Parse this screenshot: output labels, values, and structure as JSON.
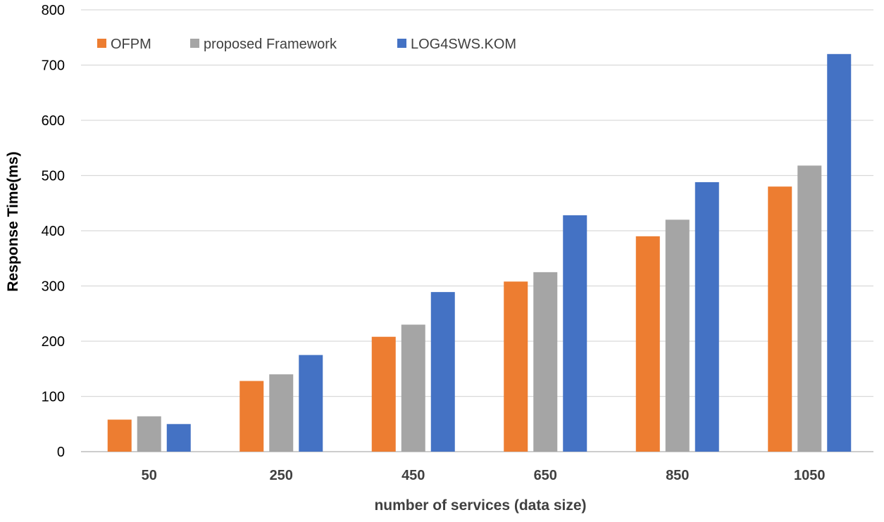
{
  "chart_data": {
    "type": "bar",
    "title": "",
    "xlabel": "number of services (data size)",
    "ylabel": "Response Time(ms)",
    "categories": [
      "50",
      "250",
      "450",
      "650",
      "850",
      "1050"
    ],
    "ylim": [
      0,
      800
    ],
    "yticks": [
      0,
      100,
      200,
      300,
      400,
      500,
      600,
      700,
      800
    ],
    "grid": true,
    "legend_position": "top-left",
    "series": [
      {
        "name": "OFPM",
        "color": "#ED7D31",
        "values": [
          58,
          128,
          208,
          308,
          390,
          480
        ]
      },
      {
        "name": "proposed Framework",
        "color": "#A5A5A5",
        "values": [
          64,
          140,
          230,
          325,
          420,
          518
        ]
      },
      {
        "name": "LOG4SWS.KOM",
        "color": "#4472C4",
        "values": [
          50,
          175,
          289,
          428,
          488,
          720
        ]
      }
    ]
  }
}
